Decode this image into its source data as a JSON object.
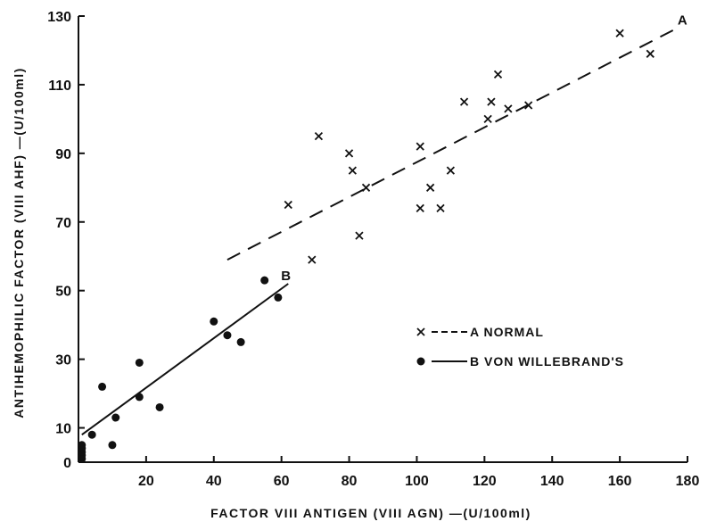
{
  "chart_data": {
    "type": "scatter",
    "xlabel": "FACTOR VIII ANTIGEN (VIII AGN) —(U/100ml)",
    "ylabel": "ANTIHEMOPHILIC FACTOR (VIII AHF) —(U/100ml)",
    "xlim": [
      0,
      180
    ],
    "ylim": [
      0,
      130
    ],
    "xticks": [
      "20",
      "40",
      "60",
      "80",
      "100",
      "120",
      "140",
      "160",
      "180"
    ],
    "yticks": [
      "0",
      "10",
      "30",
      "50",
      "70",
      "90",
      "110",
      "130"
    ],
    "grid": false,
    "legend_position": "right-center",
    "series": [
      {
        "name": "A NORMAL",
        "marker": "x",
        "line": "dashed",
        "line_label": "A",
        "fit": [
          [
            44,
            59
          ],
          [
            176,
            126
          ]
        ],
        "x": [
          62,
          69,
          71,
          80,
          81,
          83,
          85,
          101,
          101,
          104,
          107,
          110,
          114,
          121,
          122,
          124,
          127,
          133,
          160,
          169
        ],
        "y": [
          75,
          59,
          95,
          90,
          85,
          66,
          80,
          92,
          74,
          80,
          74,
          85,
          105,
          100,
          105,
          113,
          103,
          104,
          125,
          119
        ]
      },
      {
        "name": "B VON WILLEBRAND'S",
        "marker": "dot",
        "line": "solid",
        "line_label": "B",
        "fit": [
          [
            1,
            8
          ],
          [
            62,
            52
          ]
        ],
        "x": [
          1,
          1,
          1,
          1,
          1,
          4,
          7,
          10,
          11,
          18,
          18,
          24,
          40,
          44,
          48,
          55,
          59
        ],
        "y": [
          1,
          2,
          3,
          4,
          5,
          8,
          22,
          5,
          13,
          19,
          29,
          16,
          41,
          37,
          35,
          53,
          48
        ]
      }
    ]
  }
}
